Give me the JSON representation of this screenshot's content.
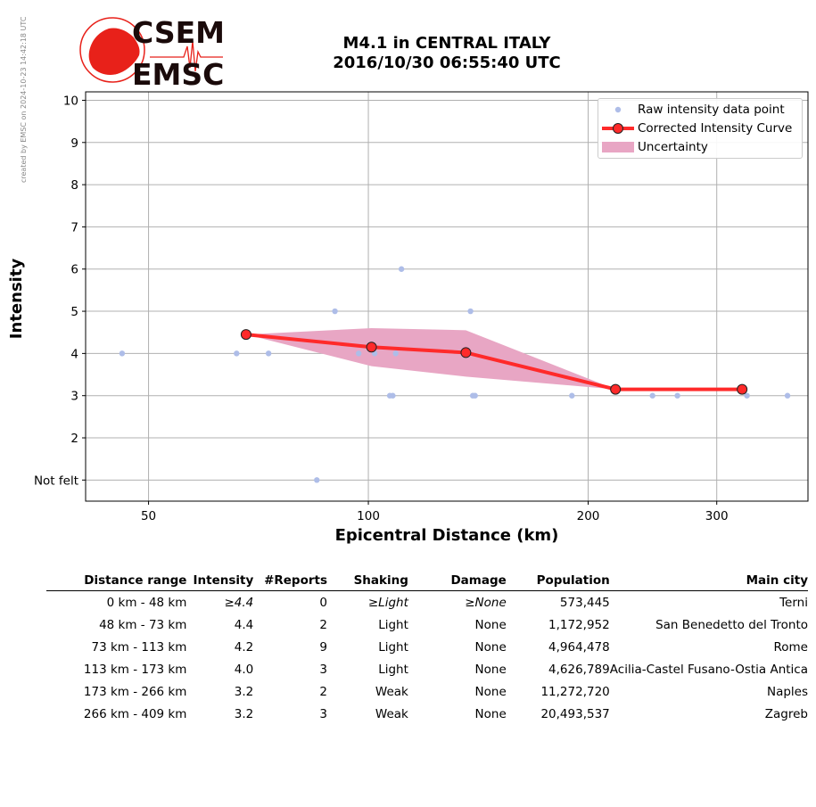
{
  "stamp": "created by EMSC on 2024-10-23 14:42:18 UTC",
  "logo": {
    "line1": "CSEM",
    "line2": "EMSC"
  },
  "title_line1": "M4.1 in CENTRAL ITALY",
  "title_line2": "2016/10/30 06:55:40 UTC",
  "colors": {
    "raw": "#aebde8",
    "curve": "#ff2a2a",
    "uncertainty": "#e8a6c4",
    "logo_red": "#e8211a"
  },
  "chart_data": {
    "type": "scatter",
    "xlabel": "Epicentral Distance (km)",
    "ylabel": "Intensity",
    "xscale": "log",
    "xlim": [
      41,
      400
    ],
    "ylim": [
      0.5,
      10.2
    ],
    "xticks": [
      50,
      100,
      200,
      300
    ],
    "yticks": [
      1,
      2,
      3,
      4,
      5,
      6,
      7,
      8,
      9,
      10
    ],
    "ytick_labels": [
      "Not felt",
      "2",
      "3",
      "4",
      "5",
      "6",
      "7",
      "8",
      "9",
      "10"
    ],
    "grid": true,
    "legend_position": "top-right",
    "series": [
      {
        "name": "Raw intensity data point",
        "kind": "points",
        "points": [
          [
            46,
            4
          ],
          [
            66,
            4
          ],
          [
            73,
            4
          ],
          [
            85,
            1
          ],
          [
            90,
            5
          ],
          [
            97,
            4
          ],
          [
            102,
            4
          ],
          [
            107,
            3
          ],
          [
            108,
            3
          ],
          [
            109,
            4
          ],
          [
            111,
            6
          ],
          [
            138,
            5
          ],
          [
            139,
            3
          ],
          [
            140,
            3
          ],
          [
            190,
            3
          ],
          [
            245,
            3
          ],
          [
            265,
            3
          ],
          [
            330,
            3
          ],
          [
            375,
            3
          ]
        ]
      },
      {
        "name": "Corrected Intensity Curve",
        "kind": "line",
        "points": [
          [
            68,
            4.45
          ],
          [
            101,
            4.15
          ],
          [
            136,
            4.02
          ],
          [
            218,
            3.15
          ],
          [
            325,
            3.15
          ]
        ]
      },
      {
        "name": "Uncertainty",
        "kind": "band",
        "upper": [
          [
            68,
            4.45
          ],
          [
            101,
            4.6
          ],
          [
            136,
            4.55
          ],
          [
            218,
            3.15
          ],
          [
            325,
            3.15
          ]
        ],
        "lower": [
          [
            68,
            4.45
          ],
          [
            101,
            3.7
          ],
          [
            136,
            3.45
          ],
          [
            218,
            3.15
          ],
          [
            325,
            3.15
          ]
        ]
      }
    ]
  },
  "table": {
    "headers": [
      "Distance range",
      "Intensity",
      "#Reports",
      "Shaking",
      "Damage",
      "Population",
      "Main city"
    ],
    "rows": [
      [
        "0 km -   48 km",
        "≥4.4",
        "0",
        "≥Light",
        "≥None",
        "573,445",
        "Terni"
      ],
      [
        "48 km -   73 km",
        "4.4",
        "2",
        "Light",
        "None",
        "1,172,952",
        "San Benedetto del Tronto"
      ],
      [
        "73 km -  113 km",
        "4.2",
        "9",
        "Light",
        "None",
        "4,964,478",
        "Rome"
      ],
      [
        "113 km -  173 km",
        "4.0",
        "3",
        "Light",
        "None",
        "4,626,789",
        "Acilia-Castel Fusano-Ostia Antica"
      ],
      [
        "173 km -  266 km",
        "3.2",
        "2",
        "Weak",
        "None",
        "11,272,720",
        "Naples"
      ],
      [
        "266 km -  409 km",
        "3.2",
        "3",
        "Weak",
        "None",
        "20,493,537",
        "Zagreb"
      ]
    ]
  }
}
